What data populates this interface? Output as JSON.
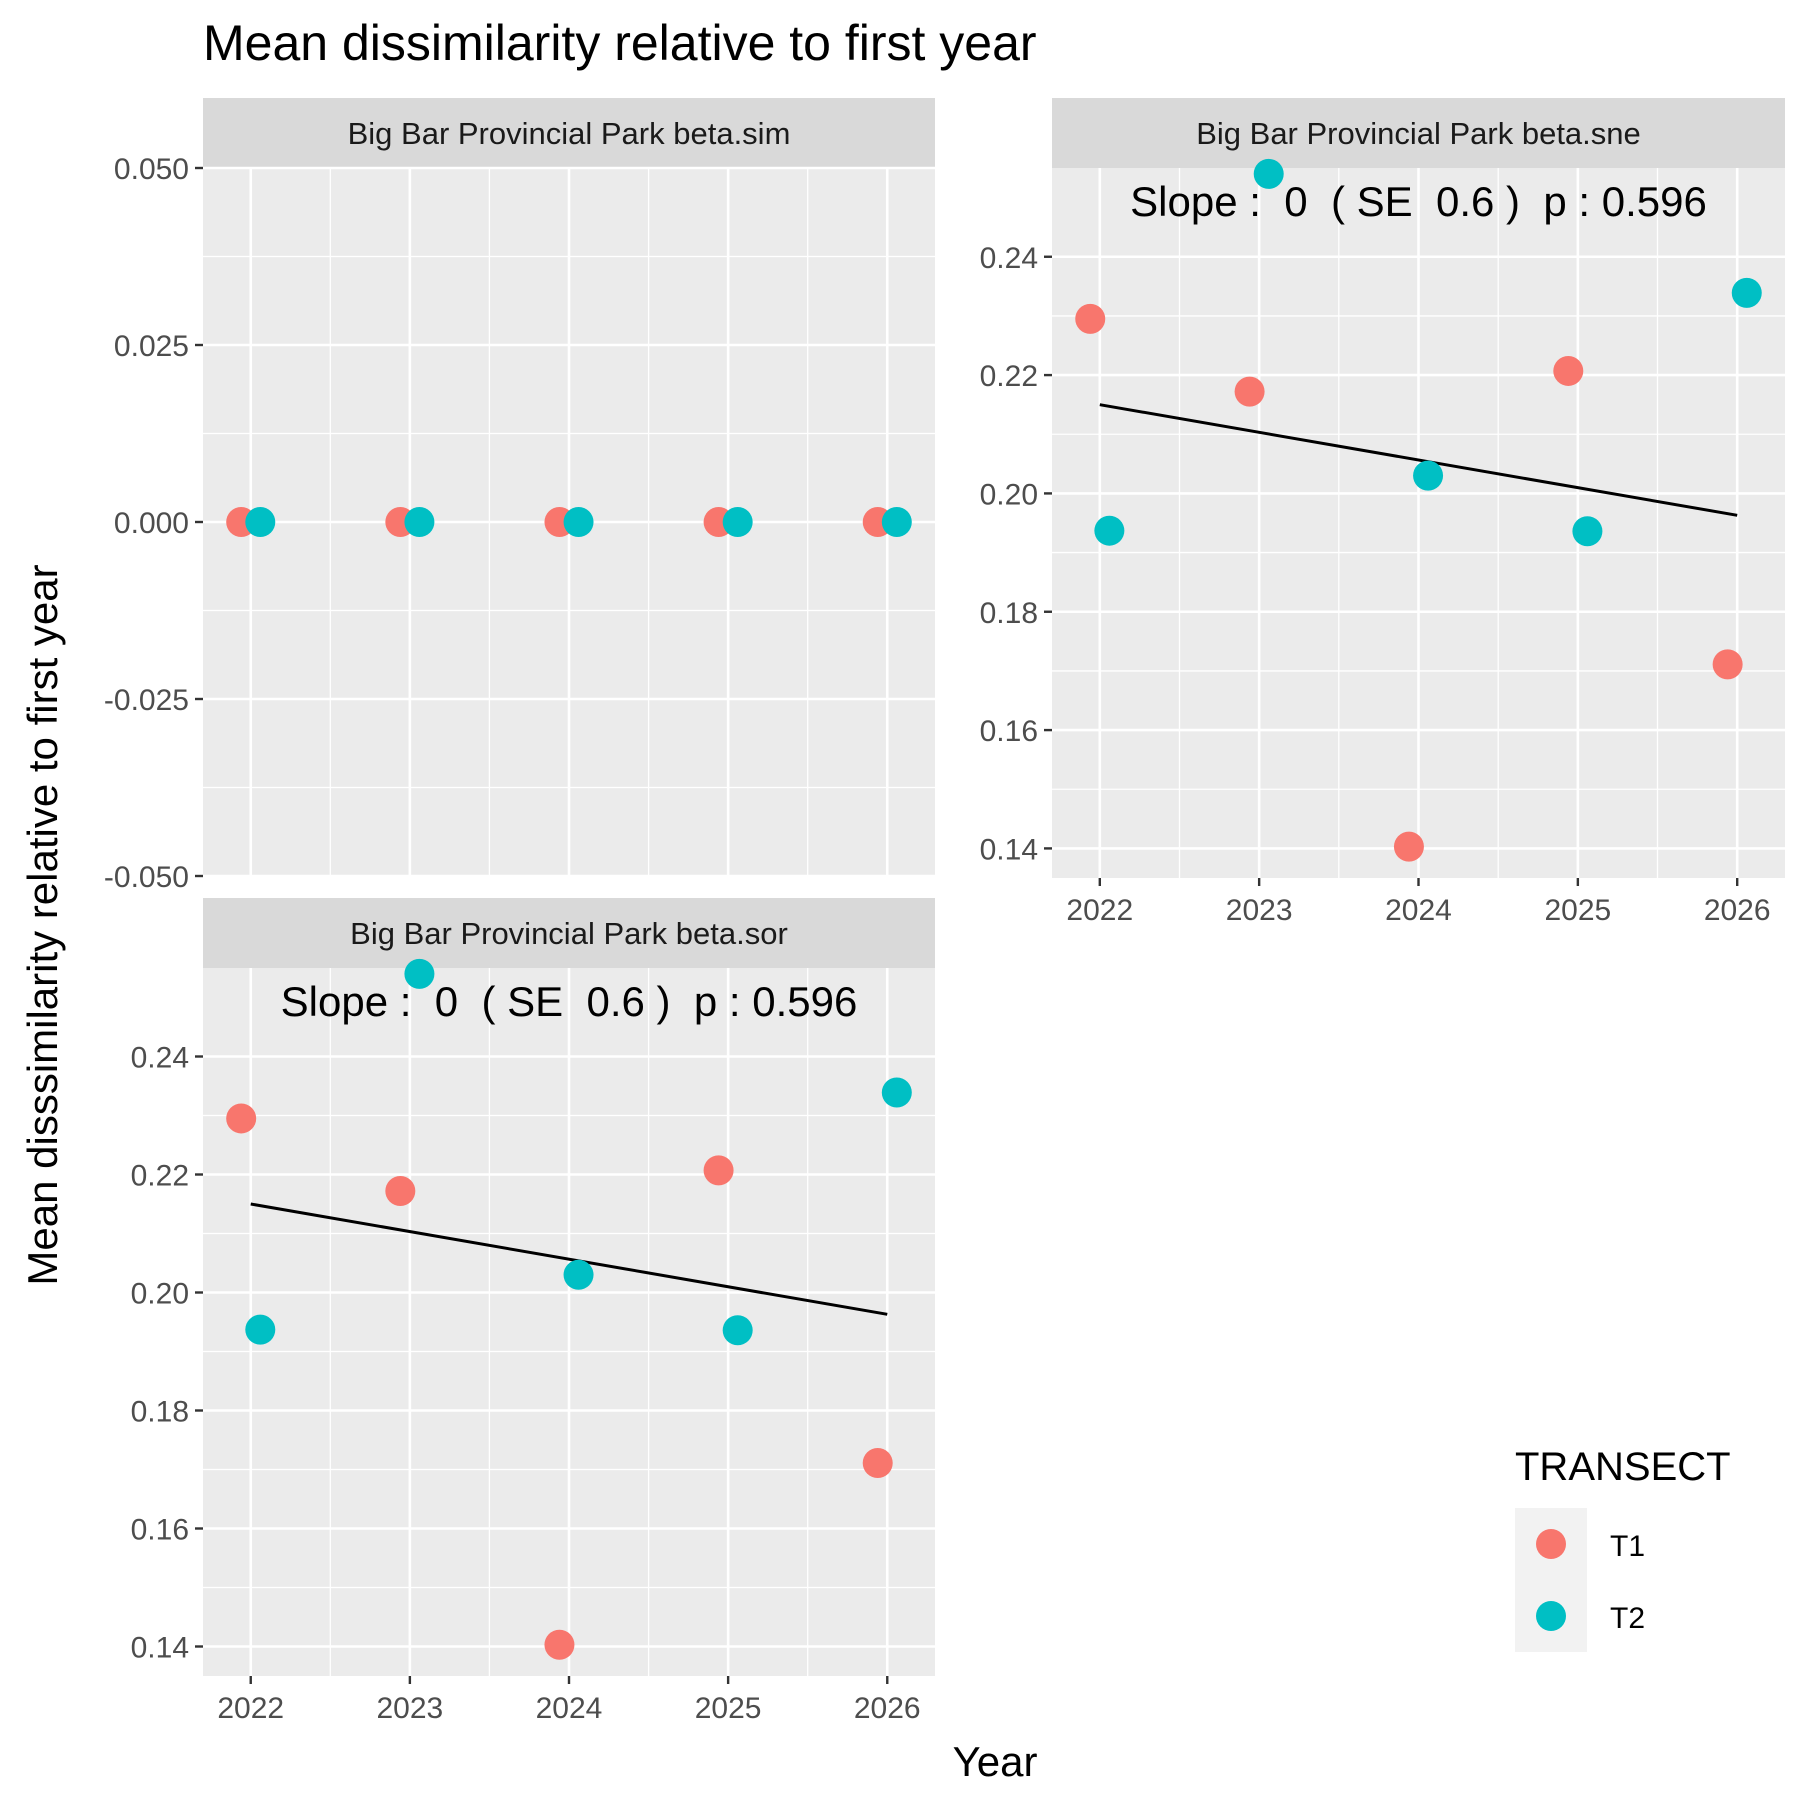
{
  "title": "Mean dissimilarity relative to first year",
  "xlabel": "Year",
  "ylabel": "Mean disssimilarity relative to first year",
  "legend": {
    "title": "TRANSECT",
    "position": "right",
    "items": [
      {
        "label": "T1",
        "color": "#F8766D"
      },
      {
        "label": "T2",
        "color": "#00BFC4"
      }
    ]
  },
  "chart_data": [
    {
      "type": "scatter",
      "strip": "Big Bar Provincial Park beta.sim",
      "x_ticks": [
        "2022",
        "2023",
        "2024",
        "2025",
        "2026"
      ],
      "y_ticks": [
        "0.050",
        "0.025",
        "0.000",
        "-0.025",
        "-0.050"
      ],
      "ylim": [
        -0.05,
        0.05
      ],
      "xlim": [
        2021.7,
        2026.3
      ],
      "grid": true,
      "series": [
        {
          "name": "T1",
          "x": [
            2022,
            2023,
            2024,
            2025,
            2026
          ],
          "y": [
            0,
            0,
            0,
            0,
            0
          ]
        },
        {
          "name": "T2",
          "x": [
            2022,
            2023,
            2024,
            2025,
            2026
          ],
          "y": [
            0,
            0,
            0,
            0,
            0
          ]
        }
      ]
    },
    {
      "type": "scatter",
      "strip": "Big Bar Provincial Park beta.sne",
      "annotation": "Slope :  0  ( SE  0.6 )  p : 0.596",
      "x_ticks": [
        "2022",
        "2023",
        "2024",
        "2025",
        "2026"
      ],
      "y_ticks": [
        "0.24",
        "0.22",
        "0.20",
        "0.18",
        "0.16",
        "0.14"
      ],
      "ylim": [
        0.135,
        0.255
      ],
      "xlim": [
        2021.7,
        2026.3
      ],
      "grid": true,
      "series": [
        {
          "name": "T1",
          "x": [
            2022,
            2023,
            2024,
            2025,
            2026
          ],
          "y": [
            0.2295,
            0.2172,
            0.1403,
            0.2207,
            0.1711
          ]
        },
        {
          "name": "T2",
          "x": [
            2022,
            2023,
            2024,
            2025,
            2026
          ],
          "y": [
            0.1937,
            0.254,
            0.203,
            0.1936,
            0.2339
          ]
        }
      ],
      "trend": {
        "x": [
          2022,
          2026
        ],
        "y": [
          0.215,
          0.1963
        ]
      }
    },
    {
      "type": "scatter",
      "strip": "Big Bar Provincial Park beta.sor",
      "annotation": "Slope :  0  ( SE  0.6 )  p : 0.596",
      "x_ticks": [
        "2022",
        "2023",
        "2024",
        "2025",
        "2026"
      ],
      "y_ticks": [
        "0.24",
        "0.22",
        "0.20",
        "0.18",
        "0.16",
        "0.14"
      ],
      "ylim": [
        0.135,
        0.255
      ],
      "xlim": [
        2021.7,
        2026.3
      ],
      "grid": true,
      "series": [
        {
          "name": "T1",
          "x": [
            2022,
            2023,
            2024,
            2025,
            2026
          ],
          "y": [
            0.2295,
            0.2172,
            0.1403,
            0.2207,
            0.1711
          ]
        },
        {
          "name": "T2",
          "x": [
            2022,
            2023,
            2024,
            2025,
            2026
          ],
          "y": [
            0.1937,
            0.254,
            0.203,
            0.1936,
            0.2339
          ]
        }
      ],
      "trend": {
        "x": [
          2022,
          2026
        ],
        "y": [
          0.215,
          0.1963
        ]
      }
    }
  ]
}
